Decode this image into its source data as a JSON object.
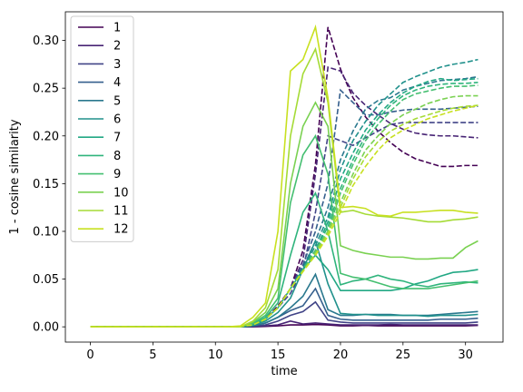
{
  "chart_data": {
    "type": "line",
    "xlabel": "time",
    "ylabel": "1 - cosine similarity",
    "xlim": [
      -2,
      33
    ],
    "ylim": [
      -0.016,
      0.33
    ],
    "xticks": [
      0,
      5,
      10,
      15,
      20,
      25,
      30
    ],
    "yticks": [
      0.0,
      0.05,
      0.1,
      0.15,
      0.2,
      0.25,
      0.3
    ],
    "ytick_labels": [
      "0.00",
      "0.05",
      "0.10",
      "0.15",
      "0.20",
      "0.25",
      "0.30"
    ],
    "legend_position": "upper-left",
    "x": [
      0,
      1,
      2,
      3,
      4,
      5,
      6,
      7,
      8,
      9,
      10,
      11,
      12,
      13,
      14,
      15,
      16,
      17,
      18,
      19,
      20,
      21,
      22,
      23,
      24,
      25,
      26,
      27,
      28,
      29,
      30,
      31
    ],
    "series": [
      {
        "name": "1",
        "color": "#440154",
        "values": [
          0,
          0,
          0,
          0,
          0,
          0,
          0,
          0,
          0,
          0,
          0,
          0,
          0,
          0,
          0.0005,
          0.001,
          0.002,
          0.002,
          0.0025,
          0.002,
          0.001,
          0.001,
          0.0015,
          0.001,
          0.001,
          0.001,
          0.001,
          0.001,
          0.001,
          0.001,
          0.001,
          0.0015
        ],
        "dashed_values": [
          0,
          0,
          0,
          0,
          0,
          0,
          0,
          0,
          0,
          0,
          0,
          0,
          0.0005,
          0.002,
          0.008,
          0.022,
          0.04,
          0.08,
          0.17,
          0.314,
          0.27,
          0.24,
          0.22,
          0.205,
          0.193,
          0.183,
          0.176,
          0.172,
          0.168,
          0.168,
          0.169,
          0.169
        ]
      },
      {
        "name": "2",
        "color": "#482475",
        "values": [
          0,
          0,
          0,
          0,
          0,
          0,
          0,
          0,
          0,
          0,
          0,
          0,
          0,
          0.0005,
          0.001,
          0.002,
          0.006,
          0.003,
          0.004,
          0.003,
          0.002,
          0.002,
          0.002,
          0.002,
          0.0025,
          0.002,
          0.002,
          0.002,
          0.002,
          0.002,
          0.002,
          0.002
        ],
        "dashed_values": [
          0,
          0,
          0,
          0,
          0,
          0,
          0,
          0,
          0,
          0,
          0,
          0,
          0.0005,
          0.002,
          0.008,
          0.02,
          0.04,
          0.07,
          0.16,
          0.272,
          0.268,
          0.245,
          0.232,
          0.222,
          0.213,
          0.207,
          0.203,
          0.201,
          0.2,
          0.2,
          0.199,
          0.198
        ]
      },
      {
        "name": "3",
        "color": "#414487",
        "values": [
          0,
          0,
          0,
          0,
          0,
          0,
          0,
          0,
          0,
          0,
          0,
          0,
          0,
          0.0005,
          0.002,
          0.006,
          0.012,
          0.016,
          0.026,
          0.007,
          0.005,
          0.004,
          0.004,
          0.004,
          0.004,
          0.004,
          0.004,
          0.004,
          0.004,
          0.004,
          0.004,
          0.005
        ],
        "dashed_values": [
          0,
          0,
          0,
          0,
          0,
          0,
          0,
          0,
          0,
          0,
          0,
          0,
          0.0005,
          0.002,
          0.008,
          0.02,
          0.035,
          0.06,
          0.12,
          0.2,
          0.195,
          0.19,
          0.198,
          0.205,
          0.212,
          0.214,
          0.214,
          0.214,
          0.214,
          0.214,
          0.214,
          0.214
        ]
      },
      {
        "name": "4",
        "color": "#355f8d",
        "values": [
          0,
          0,
          0,
          0,
          0,
          0,
          0,
          0,
          0,
          0,
          0,
          0,
          0,
          0.001,
          0.004,
          0.01,
          0.017,
          0.022,
          0.04,
          0.012,
          0.008,
          0.007,
          0.007,
          0.007,
          0.007,
          0.007,
          0.007,
          0.007,
          0.008,
          0.008,
          0.008,
          0.009
        ],
        "dashed_values": [
          0,
          0,
          0,
          0,
          0,
          0,
          0,
          0,
          0,
          0,
          0,
          0,
          0.0005,
          0.002,
          0.008,
          0.02,
          0.04,
          0.065,
          0.1,
          0.15,
          0.248,
          0.235,
          0.222,
          0.222,
          0.225,
          0.227,
          0.228,
          0.228,
          0.228,
          0.229,
          0.23,
          0.231
        ]
      },
      {
        "name": "5",
        "color": "#2a788e",
        "values": [
          0,
          0,
          0,
          0,
          0,
          0,
          0,
          0,
          0,
          0,
          0,
          0,
          0,
          0.001,
          0.004,
          0.01,
          0.02,
          0.032,
          0.055,
          0.018,
          0.012,
          0.012,
          0.013,
          0.013,
          0.013,
          0.012,
          0.012,
          0.012,
          0.013,
          0.014,
          0.015,
          0.016
        ],
        "dashed_values": [
          0,
          0,
          0,
          0,
          0,
          0,
          0,
          0,
          0,
          0,
          0,
          0,
          0.0005,
          0.002,
          0.008,
          0.02,
          0.04,
          0.062,
          0.09,
          0.125,
          0.175,
          0.205,
          0.228,
          0.237,
          0.24,
          0.248,
          0.252,
          0.255,
          0.258,
          0.259,
          0.26,
          0.262
        ]
      },
      {
        "name": "6",
        "color": "#21918c",
        "values": [
          0,
          0,
          0,
          0,
          0,
          0,
          0,
          0,
          0,
          0,
          0,
          0,
          0,
          0.002,
          0.006,
          0.015,
          0.03,
          0.06,
          0.09,
          0.045,
          0.014,
          0.013,
          0.013,
          0.012,
          0.012,
          0.012,
          0.012,
          0.011,
          0.012,
          0.012,
          0.012,
          0.013
        ],
        "dashed_values": [
          0,
          0,
          0,
          0,
          0,
          0,
          0,
          0,
          0,
          0,
          0,
          0,
          0.0005,
          0.002,
          0.008,
          0.02,
          0.04,
          0.06,
          0.085,
          0.115,
          0.165,
          0.195,
          0.215,
          0.232,
          0.244,
          0.256,
          0.262,
          0.267,
          0.272,
          0.275,
          0.277,
          0.28
        ]
      },
      {
        "name": "7",
        "color": "#22a884",
        "values": [
          0,
          0,
          0,
          0,
          0,
          0,
          0,
          0,
          0,
          0,
          0,
          0,
          0,
          0.002,
          0.008,
          0.02,
          0.04,
          0.06,
          0.075,
          0.06,
          0.038,
          0.038,
          0.038,
          0.038,
          0.038,
          0.04,
          0.045,
          0.048,
          0.053,
          0.057,
          0.058,
          0.06
        ],
        "dashed_values": [
          0,
          0,
          0,
          0,
          0,
          0,
          0,
          0,
          0,
          0,
          0,
          0,
          0.0005,
          0.002,
          0.008,
          0.02,
          0.04,
          0.06,
          0.08,
          0.11,
          0.155,
          0.182,
          0.206,
          0.222,
          0.235,
          0.245,
          0.252,
          0.257,
          0.26,
          0.258,
          0.259,
          0.26
        ]
      },
      {
        "name": "8",
        "color": "#2fb47c",
        "values": [
          0,
          0,
          0,
          0,
          0,
          0,
          0,
          0,
          0,
          0,
          0,
          0,
          0,
          0.003,
          0.01,
          0.025,
          0.075,
          0.12,
          0.14,
          0.1,
          0.044,
          0.048,
          0.05,
          0.054,
          0.05,
          0.048,
          0.044,
          0.042,
          0.045,
          0.046,
          0.047,
          0.046
        ],
        "dashed_values": [
          0,
          0,
          0,
          0,
          0,
          0,
          0,
          0,
          0,
          0,
          0,
          0,
          0.0005,
          0.002,
          0.008,
          0.02,
          0.04,
          0.06,
          0.08,
          0.105,
          0.145,
          0.175,
          0.2,
          0.218,
          0.232,
          0.242,
          0.248,
          0.252,
          0.254,
          0.255,
          0.255,
          0.256
        ]
      },
      {
        "name": "9",
        "color": "#44bf70",
        "values": [
          0,
          0,
          0,
          0,
          0,
          0,
          0,
          0,
          0,
          0,
          0,
          0,
          0,
          0.004,
          0.012,
          0.03,
          0.13,
          0.18,
          0.2,
          0.16,
          0.056,
          0.052,
          0.05,
          0.046,
          0.042,
          0.04,
          0.04,
          0.04,
          0.042,
          0.044,
          0.046,
          0.048
        ],
        "dashed_values": [
          0,
          0,
          0,
          0,
          0,
          0,
          0,
          0,
          0,
          0,
          0,
          0,
          0.0005,
          0.002,
          0.008,
          0.02,
          0.04,
          0.06,
          0.08,
          0.1,
          0.14,
          0.17,
          0.195,
          0.212,
          0.226,
          0.238,
          0.244,
          0.247,
          0.25,
          0.252,
          0.252,
          0.253
        ]
      },
      {
        "name": "10",
        "color": "#7ad151",
        "values": [
          0,
          0,
          0,
          0,
          0,
          0,
          0,
          0,
          0,
          0,
          0,
          0,
          0,
          0.005,
          0.015,
          0.04,
          0.15,
          0.21,
          0.235,
          0.21,
          0.085,
          0.08,
          0.077,
          0.075,
          0.073,
          0.073,
          0.071,
          0.071,
          0.072,
          0.072,
          0.083,
          0.09
        ],
        "dashed_values": [
          0,
          0,
          0,
          0,
          0,
          0,
          0,
          0,
          0,
          0,
          0,
          0,
          0.0005,
          0.002,
          0.008,
          0.02,
          0.04,
          0.058,
          0.078,
          0.1,
          0.13,
          0.16,
          0.185,
          0.2,
          0.213,
          0.222,
          0.228,
          0.234,
          0.238,
          0.241,
          0.242,
          0.242
        ]
      },
      {
        "name": "11",
        "color": "#a5db36",
        "values": [
          0,
          0,
          0,
          0,
          0,
          0,
          0,
          0,
          0,
          0,
          0,
          0,
          0,
          0.006,
          0.02,
          0.06,
          0.2,
          0.265,
          0.291,
          0.235,
          0.12,
          0.122,
          0.118,
          0.116,
          0.115,
          0.114,
          0.112,
          0.11,
          0.11,
          0.112,
          0.113,
          0.115
        ],
        "dashed_values": [
          0,
          0,
          0,
          0,
          0,
          0,
          0,
          0,
          0,
          0,
          0,
          0,
          0.0005,
          0.002,
          0.008,
          0.02,
          0.04,
          0.058,
          0.075,
          0.098,
          0.125,
          0.155,
          0.178,
          0.194,
          0.205,
          0.212,
          0.218,
          0.222,
          0.226,
          0.229,
          0.231,
          0.232
        ]
      },
      {
        "name": "12",
        "color": "#c8e020",
        "values": [
          0,
          0,
          0,
          0,
          0,
          0,
          0,
          0,
          0,
          0,
          0,
          0,
          0.001,
          0.01,
          0.025,
          0.1,
          0.268,
          0.28,
          0.314,
          0.24,
          0.125,
          0.126,
          0.124,
          0.117,
          0.116,
          0.12,
          0.12,
          0.121,
          0.122,
          0.122,
          0.12,
          0.119
        ],
        "dashed_values": [
          0,
          0,
          0,
          0,
          0,
          0,
          0,
          0,
          0,
          0,
          0,
          0,
          0.0005,
          0.002,
          0.008,
          0.02,
          0.04,
          0.058,
          0.075,
          0.095,
          0.12,
          0.148,
          0.168,
          0.185,
          0.198,
          0.206,
          0.212,
          0.218,
          0.222,
          0.226,
          0.229,
          0.232
        ]
      }
    ]
  }
}
